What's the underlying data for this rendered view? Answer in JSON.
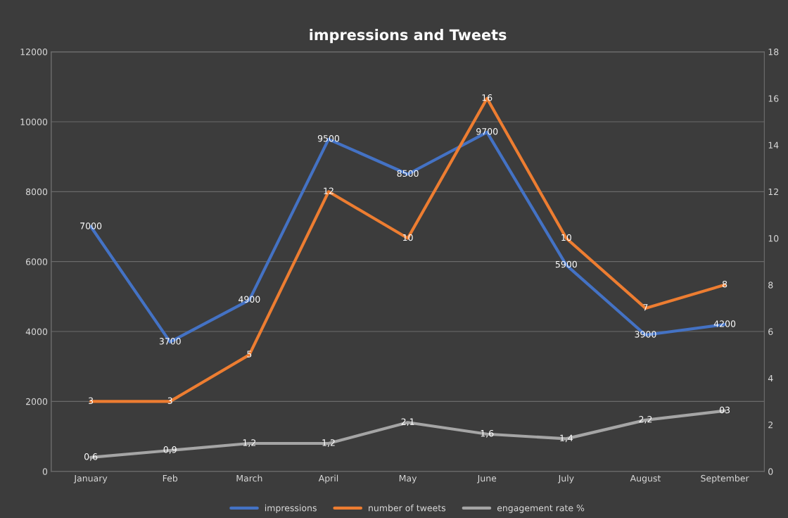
{
  "chart_data": {
    "type": "line",
    "title": "impressions and Tweets",
    "categories": [
      "January",
      "Feb",
      "March",
      "April",
      "May",
      "June",
      "July",
      "August",
      "September"
    ],
    "series": [
      {
        "name": "impressions",
        "color": "#4472c4",
        "values": [
          7000,
          3700,
          4900,
          9500,
          8500,
          9700,
          5900,
          3900,
          4200
        ]
      },
      {
        "name": "number of tweets",
        "color": "#ed7d31",
        "axis": "y2",
        "values": [
          3,
          3,
          5,
          12,
          10,
          16,
          10,
          7,
          8
        ]
      },
      {
        "name": "engagement rate %",
        "color": "#a5a5a5",
        "axis": "y2",
        "values": [
          0.6,
          0.9,
          1.2,
          1.2,
          2.1,
          1.6,
          1.4,
          2.2,
          2.6
        ],
        "value_labels": [
          "0,6",
          "0,9",
          "1,2",
          "1,2",
          "2,1",
          "1,6",
          "1,4",
          "2,2",
          "03"
        ]
      }
    ],
    "ylim": [
      0,
      12000
    ],
    "yticks": [
      0,
      2000,
      4000,
      6000,
      8000,
      10000,
      12000
    ],
    "y2lim": [
      0,
      18
    ],
    "y2ticks": [
      0,
      2,
      4,
      6,
      8,
      10,
      12,
      14,
      16,
      18
    ],
    "data_labels": true,
    "grid": true,
    "legend": "bottom",
    "marker": "none",
    "line_style": "solid"
  }
}
